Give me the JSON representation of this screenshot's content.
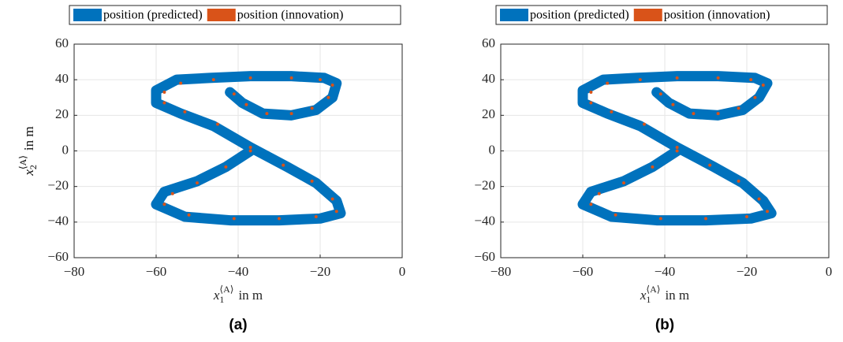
{
  "chart_data": [
    {
      "type": "line",
      "caption": "(a)",
      "xlabel": {
        "symbol": "x",
        "sub": "1",
        "sup": "⟨A⟩",
        "unit": "in m"
      },
      "ylabel": {
        "symbol": "x",
        "sub": "2",
        "sup": "⟨A⟩",
        "unit": "in m"
      },
      "xlim": [
        -80,
        0
      ],
      "ylim": [
        -60,
        60
      ],
      "xticks": [
        {
          "value": -80,
          "label": "−80"
        },
        {
          "value": -60,
          "label": "−60"
        },
        {
          "value": -40,
          "label": "−40"
        },
        {
          "value": -20,
          "label": "−20"
        },
        0
      ],
      "yticks": [
        {
          "value": -60,
          "label": "−60"
        },
        {
          "value": -40,
          "label": "−40"
        },
        {
          "value": -20,
          "label": "−20"
        },
        0,
        20,
        40,
        60
      ],
      "grid": true,
      "series": [
        {
          "name": "position (predicted)",
          "color": "#0072BD",
          "mode": "band",
          "x": [
            -42,
            -39,
            -34,
            -27,
            -21,
            -17,
            -16,
            -19,
            -27,
            -37,
            -47,
            -55,
            -60,
            -60,
            -54,
            -46,
            -37,
            -28,
            -21,
            -16,
            -15,
            -20,
            -30,
            -42,
            -53,
            -60,
            -58,
            -50,
            -43,
            -37
          ],
          "values": [
            33,
            27,
            21,
            20,
            23,
            30,
            38,
            41,
            42,
            42,
            41,
            40,
            34,
            27,
            21,
            14,
            2,
            -9,
            -18,
            -28,
            -35,
            -38,
            -39,
            -39,
            -37,
            -30,
            -23,
            -17,
            -9,
            0
          ]
        },
        {
          "name": "position (innovation)",
          "color": "#D95319",
          "mode": "markers",
          "x": [
            -41,
            -38,
            -33,
            -27,
            -22,
            -18,
            -17,
            -20,
            -27,
            -37,
            -46,
            -54,
            -58,
            -58,
            -53,
            -45,
            -37,
            -29,
            -22,
            -17,
            -16,
            -21,
            -30,
            -41,
            -52,
            -58,
            -56,
            -50,
            -43,
            -37
          ],
          "values": [
            32,
            26,
            21,
            21,
            24,
            30,
            37,
            40,
            41,
            41,
            40,
            38,
            33,
            27,
            22,
            15,
            2,
            -8,
            -17,
            -27,
            -34,
            -37,
            -38,
            -38,
            -36,
            -30,
            -24,
            -18,
            -9,
            0
          ]
        }
      ]
    },
    {
      "type": "line",
      "caption": "(b)",
      "xlabel": {
        "symbol": "x",
        "sub": "1",
        "sup": "⟨A⟩",
        "unit": "in m"
      },
      "ylabel": {
        "symbol": "x",
        "sub": "2",
        "sup": "⟨A⟩",
        "unit": "in m"
      },
      "xlim": [
        -80,
        0
      ],
      "ylim": [
        -60,
        60
      ],
      "xticks": [
        {
          "value": -80,
          "label": "−80"
        },
        {
          "value": -60,
          "label": "−60"
        },
        {
          "value": -40,
          "label": "−40"
        },
        {
          "value": -20,
          "label": "−20"
        },
        0
      ],
      "yticks": [
        {
          "value": -60,
          "label": "−60"
        },
        {
          "value": -40,
          "label": "−40"
        },
        {
          "value": -20,
          "label": "−20"
        },
        0,
        20,
        40,
        60
      ],
      "grid": true,
      "series": [
        {
          "name": "position (predicted)",
          "color": "#0072BD",
          "mode": "band",
          "x": [
            -42,
            -39,
            -34,
            -27,
            -21,
            -17,
            -15,
            -18,
            -27,
            -37,
            -47,
            -55,
            -60,
            -60,
            -54,
            -46,
            -37,
            -28,
            -21,
            -16,
            -14,
            -19,
            -30,
            -42,
            -53,
            -60,
            -58,
            -50,
            -43,
            -37
          ],
          "values": [
            33,
            27,
            21,
            20,
            23,
            30,
            38,
            41,
            42,
            42,
            41,
            40,
            34,
            27,
            21,
            14,
            2,
            -9,
            -18,
            -28,
            -35,
            -38,
            -39,
            -39,
            -37,
            -30,
            -23,
            -17,
            -9,
            0
          ]
        },
        {
          "name": "position (innovation)",
          "color": "#D95319",
          "mode": "markers",
          "x": [
            -41,
            -38,
            -33,
            -27,
            -22,
            -18,
            -16,
            -19,
            -27,
            -37,
            -46,
            -54,
            -58,
            -58,
            -53,
            -45,
            -37,
            -29,
            -22,
            -17,
            -15,
            -20,
            -30,
            -41,
            -52,
            -58,
            -56,
            -50,
            -43,
            -37
          ],
          "values": [
            32,
            26,
            21,
            21,
            24,
            30,
            37,
            40,
            41,
            41,
            40,
            38,
            33,
            27,
            22,
            15,
            2,
            -8,
            -17,
            -27,
            -34,
            -37,
            -38,
            -38,
            -36,
            -30,
            -24,
            -18,
            -9,
            0
          ]
        }
      ]
    }
  ]
}
